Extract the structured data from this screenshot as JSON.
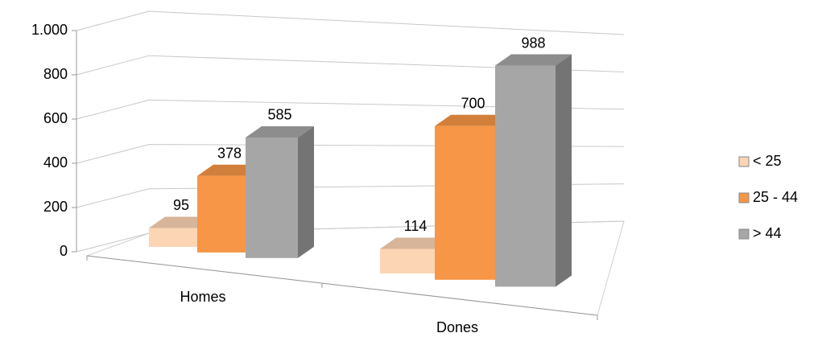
{
  "chart_data": {
    "type": "bar3d",
    "categories": [
      "Homes",
      "Dones"
    ],
    "series": [
      {
        "name": "< 25",
        "color": "#fcd5b5",
        "values": [
          95,
          114
        ]
      },
      {
        "name": "25 - 44",
        "color": "#f79646",
        "values": [
          378,
          700
        ]
      },
      {
        "name": "> 44",
        "color": "#a6a6a6",
        "values": [
          585,
          988
        ]
      }
    ],
    "ylim": [
      0,
      1000
    ],
    "yticks": [
      0,
      200,
      400,
      600,
      800,
      {
        "value": 1000,
        "label": "1.000"
      }
    ],
    "grid": true,
    "legend": "right"
  }
}
